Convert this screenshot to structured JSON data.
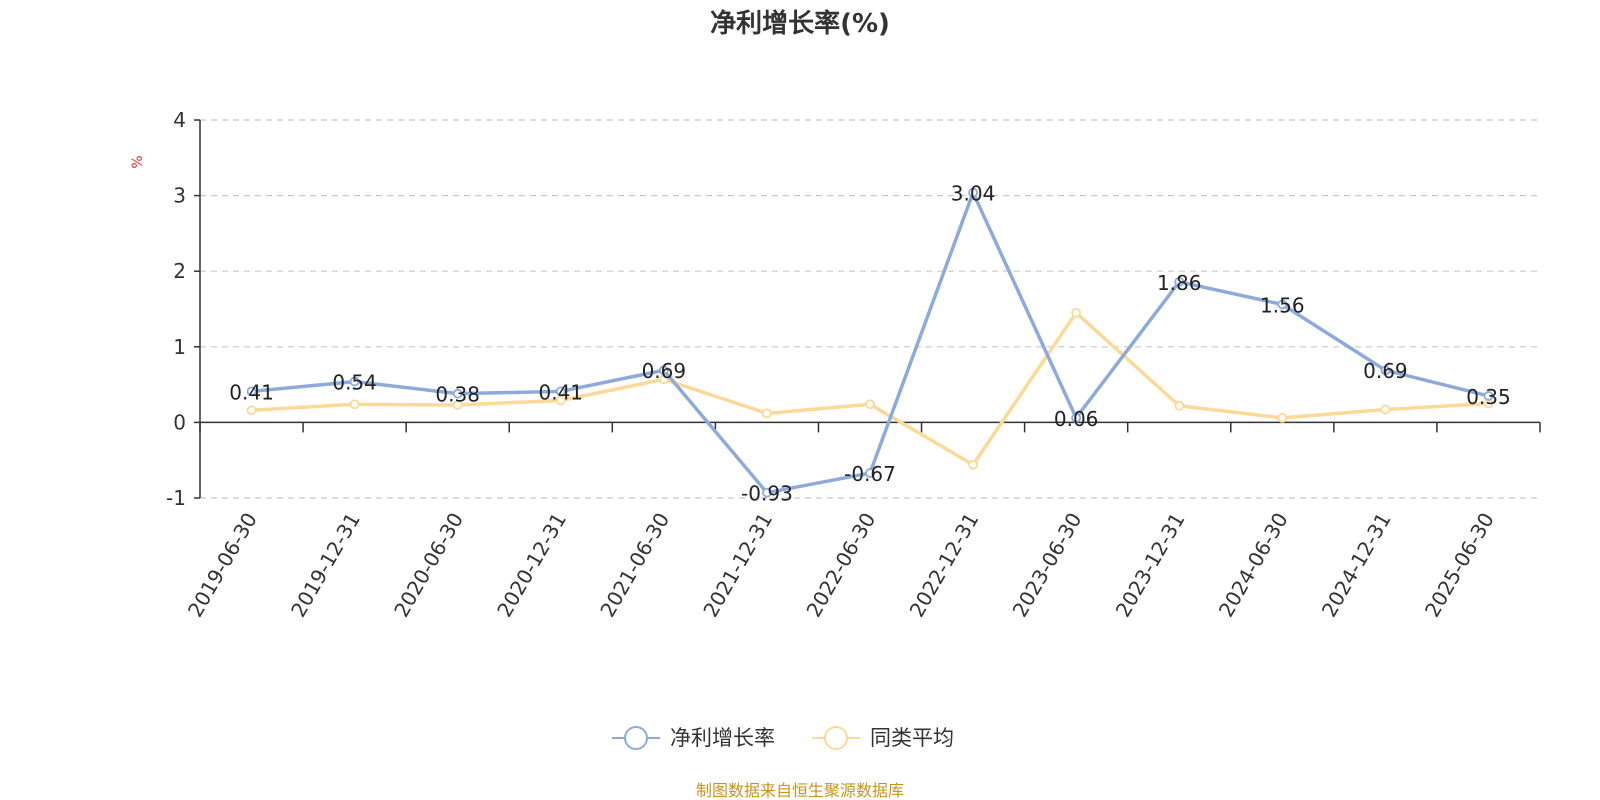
{
  "chart_data": {
    "type": "line",
    "title": "净利增长率(%)",
    "ylabel": "%",
    "categories": [
      "2019-06-30",
      "2019-12-31",
      "2020-06-30",
      "2020-12-31",
      "2021-06-30",
      "2021-12-31",
      "2022-06-30",
      "2022-12-31",
      "2023-06-30",
      "2023-12-31",
      "2024-06-30",
      "2024-12-31",
      "2025-06-30"
    ],
    "series": [
      {
        "name": "净利增长率",
        "color": "#8eaadb",
        "values": [
          0.41,
          0.54,
          0.38,
          0.41,
          0.69,
          -0.93,
          -0.67,
          3.04,
          0.06,
          1.86,
          1.56,
          0.69,
          0.35
        ],
        "labels": [
          "0.41",
          "0.54",
          "0.38",
          "0.41",
          "0.69",
          "-0.93",
          "-0.67",
          "3.04",
          "0.06",
          "1.86",
          "1.56",
          "0.69",
          "0.35"
        ]
      },
      {
        "name": "同类平均",
        "color": "#fcd997",
        "values": [
          0.16,
          0.24,
          0.23,
          0.29,
          0.57,
          0.12,
          0.24,
          -0.56,
          1.45,
          0.22,
          0.06,
          0.17,
          0.25
        ]
      }
    ],
    "ylim": [
      -1,
      4
    ],
    "yticks": [
      -1,
      0,
      1,
      2,
      3,
      4
    ],
    "grid": true,
    "legend_position": "bottom-center"
  },
  "unit_color": "#e03030",
  "source": {
    "text": "制图数据来自恒生聚源数据库",
    "color": "#c8941a"
  }
}
